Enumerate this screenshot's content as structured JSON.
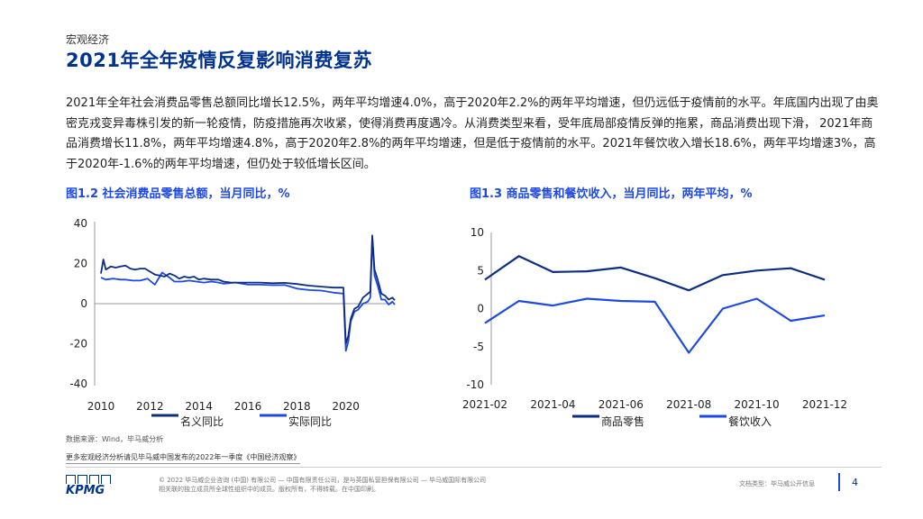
{
  "header": {
    "section": "宏观经济",
    "title": "2021年全年疫情反复影响消费复苏"
  },
  "body_text": "2021年全年社会消费品零售总额同比增长12.5%，两年平均增速4.0%，高于2020年2.2%的两年平均增速，但仍远低于疫情前的水平。年底国内出现了由奥密克戎变异毒株引发的新一轮疫情，防疫措施再次收紧，使得消费再度遇冷。从消费类型来看，受年底局部疫情反弹的拖累，商品消费出现下滑，  2021年商品消费增长11.8%，两年平均增速4.8%，高于2020年2.8%的两年平均增速，但是低于疫情前的水平。2021年餐饮收入增长18.6%，两年平均增速3%，高于2020年-1.6%的两年平均增速，但仍处于较低增长区间。",
  "chart_data": [
    {
      "type": "line",
      "title": "图1.2 社会消费品零售总额，当月同比，%",
      "x_tick_labels": [
        "2010",
        "2012",
        "2014",
        "2016",
        "2018",
        "2020"
      ],
      "y_tick_labels": [
        "40",
        "20",
        "0",
        "-20",
        "-40"
      ],
      "ylim": [
        -40,
        40
      ],
      "xlim": [
        2010,
        2022
      ],
      "series": [
        {
          "name": "名义同比",
          "color": "#0C2D83",
          "x": [
            2010.0,
            2010.1,
            2010.2,
            2010.4,
            2010.6,
            2010.8,
            2011.0,
            2011.2,
            2011.4,
            2011.6,
            2011.8,
            2012.0,
            2012.2,
            2012.4,
            2012.6,
            2012.8,
            2013.0,
            2013.2,
            2013.4,
            2013.6,
            2013.8,
            2014.0,
            2014.2,
            2014.5,
            2014.8,
            2015.0,
            2015.3,
            2015.6,
            2016.0,
            2016.5,
            2017.0,
            2017.5,
            2018.0,
            2018.5,
            2019.0,
            2019.5,
            2019.9,
            2020.0,
            2020.1,
            2020.2,
            2020.35,
            2020.5,
            2020.7,
            2020.9,
            2021.0,
            2021.08,
            2021.17,
            2021.3,
            2021.45,
            2021.6,
            2021.75,
            2021.9,
            2022.0
          ],
          "values": [
            15,
            22,
            17,
            18.5,
            18,
            18.5,
            19,
            17.5,
            17,
            17.5,
            17.5,
            16,
            14.5,
            14,
            13.5,
            15,
            14,
            12.5,
            13.5,
            13,
            13.5,
            12,
            12.5,
            12,
            12,
            11,
            10.5,
            10.5,
            10.5,
            10.5,
            10.2,
            10.4,
            9.8,
            9,
            8.5,
            8,
            8,
            -20,
            -16,
            -7.5,
            -2.5,
            -1.5,
            3,
            5,
            6,
            34,
            17,
            12,
            5,
            4,
            2,
            3,
            1.7
          ]
        },
        {
          "name": "实际同比",
          "color": "#1E49E2",
          "x": [
            2010.0,
            2010.2,
            2010.5,
            2010.8,
            2011.0,
            2011.3,
            2011.6,
            2011.9,
            2012.2,
            2012.5,
            2012.8,
            2013.0,
            2013.3,
            2013.6,
            2013.9,
            2014.2,
            2014.5,
            2014.8,
            2015.0,
            2015.5,
            2016.0,
            2016.5,
            2017.0,
            2017.5,
            2018.0,
            2018.5,
            2019.0,
            2019.5,
            2019.9,
            2020.0,
            2020.1,
            2020.2,
            2020.35,
            2020.5,
            2020.7,
            2020.9,
            2021.0,
            2021.08,
            2021.17,
            2021.3,
            2021.45,
            2021.6,
            2021.75,
            2021.9,
            2022.0
          ],
          "values": [
            13,
            12,
            12.5,
            12,
            12,
            11.5,
            11.5,
            12.5,
            9.5,
            15.5,
            13,
            11,
            11,
            11.5,
            11,
            10.5,
            11,
            10.5,
            10,
            10.5,
            9.5,
            9.5,
            9.2,
            9.3,
            7.5,
            6.8,
            6.5,
            5.5,
            5,
            -23.5,
            -19,
            -9,
            -4,
            -3,
            0,
            1,
            3,
            33,
            14,
            9,
            2,
            2,
            -0.5,
            1,
            -0.5
          ]
        }
      ]
    },
    {
      "type": "line",
      "title": "图1.3  商品零售和餐饮收入，当月同比，两年平均，%",
      "categories": [
        "2021-02",
        "2021-03",
        "2021-04",
        "2021-05",
        "2021-06",
        "2021-07",
        "2021-08",
        "2021-09",
        "2021-10",
        "2021-11",
        "2021-12"
      ],
      "x_tick_labels": [
        "2021-02",
        "2021-04",
        "2021-06",
        "2021-08",
        "2021-10",
        "2021-12"
      ],
      "y_tick_labels": [
        "10",
        "5",
        "0",
        "-5",
        "-10"
      ],
      "ylim": [
        -10,
        10
      ],
      "series": [
        {
          "name": "商品零售",
          "color": "#0C2D83",
          "values": [
            3.8,
            6.9,
            4.8,
            4.9,
            5.4,
            4.0,
            2.4,
            4.4,
            5.0,
            5.3,
            3.8
          ]
        },
        {
          "name": "餐饮收入",
          "color": "#1E49E2",
          "values": [
            -1.9,
            1.0,
            0.4,
            1.3,
            1.0,
            0.9,
            -5.8,
            0.0,
            1.3,
            -1.6,
            -0.9
          ]
        }
      ]
    }
  ],
  "footer": {
    "source": "数据来源：Wind，毕马威分析",
    "more_link": "更多宏观经济分析请见毕马威中国发布的2022年一季度《中国经济观察》",
    "logo_text": "KPMG",
    "copyright_line1": "© 2022 毕马威企业咨询 (中国) 有限公司 — 中国有限责任公司，是与英国私营担保有限公司 — 毕马威国际有限公司",
    "copyright_line2": "相关联的独立成员所全球性组织中的成员。版权所有，不得转载。在中国印刷。",
    "doc_class": "文档类型：毕马威公开信息",
    "page_number": "4"
  }
}
